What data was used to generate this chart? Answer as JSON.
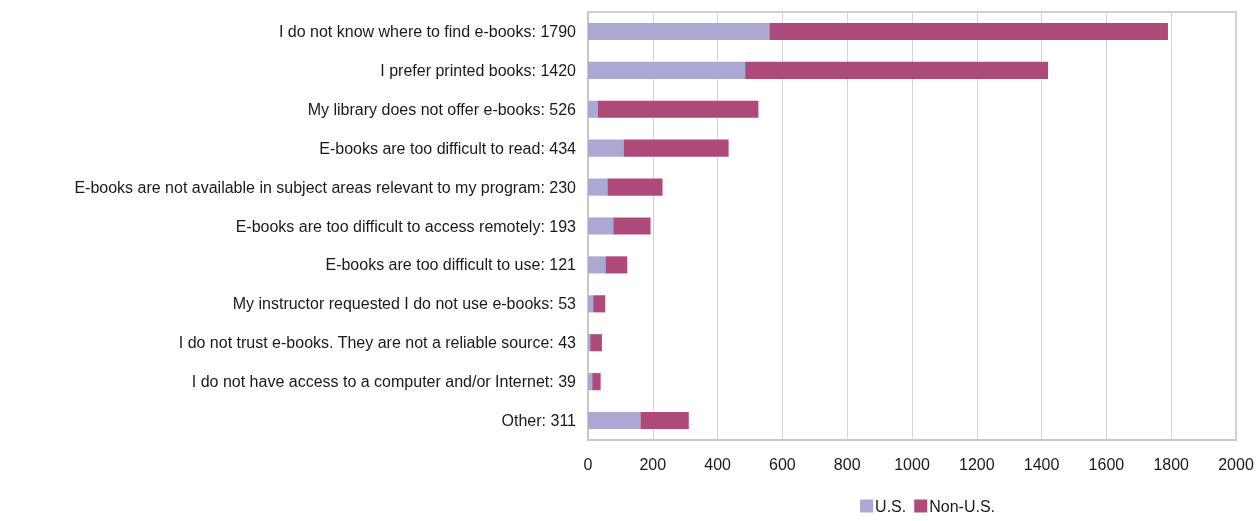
{
  "chart_data": {
    "type": "bar",
    "orientation": "horizontal",
    "stacked": true,
    "categories": [
      "I do not know where to find e-books: 1790",
      "I prefer printed books: 1420",
      "My library does not offer e-books: 526",
      "E-books are too difficult to read: 434",
      "E-books are not available in subject areas relevant to my program: 230",
      "E-books are too difficult to access remotely: 193",
      "E-books are too difficult to use: 121",
      "My instructor requested I do not use e-books: 53",
      "I do not trust e-books. They are not a reliable source: 43",
      "I do not have access to a computer and/or Internet: 39",
      "Other: 311"
    ],
    "series": [
      {
        "name": "U.S.",
        "color": "#aba9d4",
        "values": [
          560,
          485,
          30,
          110,
          60,
          78,
          54,
          16,
          7,
          13,
          162
        ]
      },
      {
        "name": "Non-U.S.",
        "color": "#ad4a7a",
        "values": [
          1230,
          935,
          496,
          324,
          170,
          115,
          67,
          37,
          36,
          26,
          149
        ]
      }
    ],
    "xlim": [
      0,
      2000
    ],
    "xticks": [
      0,
      200,
      400,
      600,
      800,
      1000,
      1200,
      1400,
      1600,
      1800,
      2000
    ],
    "grid": "x",
    "legend": "bottom"
  }
}
